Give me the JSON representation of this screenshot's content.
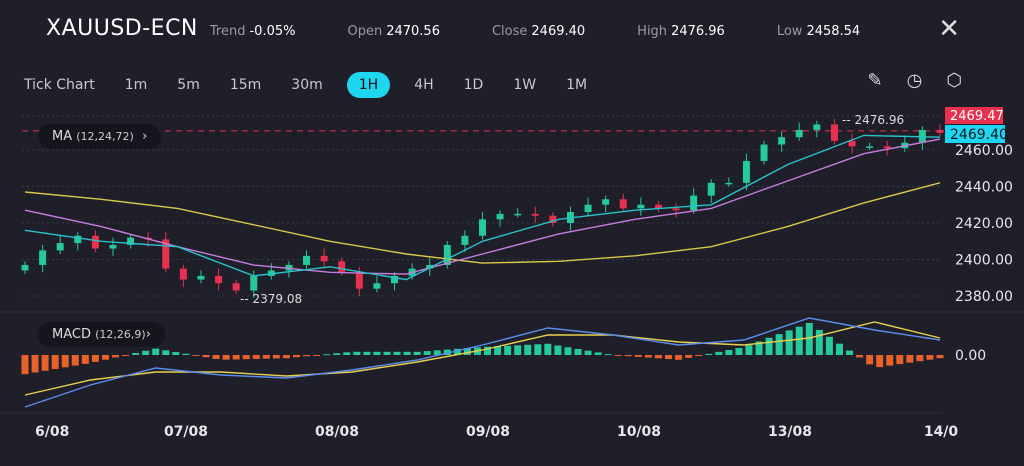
{
  "header": {
    "symbol": "XAUUSD-ECN",
    "trend_label": "Trend",
    "trend": "-0.05%",
    "open_label": "Open",
    "open": "2470.56",
    "close_label": "Close",
    "close": "2469.40",
    "high_label": "High",
    "high": "2476.96",
    "low_label": "Low",
    "low": "2458.54",
    "close_icon": "close-icon"
  },
  "toolbar": {
    "timeframes": [
      "Tick Chart",
      "1m",
      "5m",
      "15m",
      "30m",
      "1H",
      "4H",
      "1D",
      "1W",
      "1M"
    ],
    "active": "1H",
    "icons": [
      "pencil-icon",
      "timer-icon",
      "settings-icon"
    ]
  },
  "indicators": {
    "ma_label": "MA",
    "ma_params": "(12,24,72)",
    "macd_label": "MACD",
    "macd_params": "(12,26,9)"
  },
  "colors": {
    "bg": "#1f1f29",
    "up": "#26c99a",
    "down": "#e8304f",
    "ma12": "#27c3c9",
    "ma24": "#c77de0",
    "ma72": "#d8c84a",
    "macd": "#5b8def",
    "signal": "#e8d04f",
    "hist_pos": "#26c99a",
    "hist_neg": "#e8602a",
    "last": "#1fd6f0"
  },
  "chart_data": {
    "type": "candlestick",
    "y_ticks": [
      "2460.00",
      "2440.00",
      "2420.00",
      "2400.00",
      "2380.00"
    ],
    "ylim": [
      2372,
      2480
    ],
    "x_ticks": [
      "6/08",
      "07/08",
      "08/08",
      "09/08",
      "10/08",
      "13/08",
      "14/0"
    ],
    "closes": [
      2397,
      2405,
      2409,
      2413,
      2406,
      2408,
      2412,
      2411,
      2395,
      2389,
      2391,
      2387,
      2383,
      2391,
      2394,
      2397,
      2402,
      2399,
      2393,
      2384,
      2387,
      2391,
      2395,
      2397,
      2408,
      2413,
      2422,
      2425,
      2425,
      2424,
      2420,
      2426,
      2430,
      2433,
      2428,
      2430,
      2428,
      2427,
      2435,
      2442,
      2442,
      2454,
      2463,
      2467,
      2471,
      2474,
      2465,
      2462,
      2462,
      2461,
      2464,
      2471,
      2469.4
    ],
    "high_marker": "2476.96",
    "low_marker": "2379.08",
    "price_labels": {
      "bid": "2469.47",
      "last": "2469.40"
    },
    "ma": {
      "ma12": [
        2416,
        2410,
        2407,
        2391,
        2396,
        2389,
        2410,
        2422,
        2427,
        2430,
        2452,
        2468,
        2467
      ],
      "ma24": [
        2427,
        2418,
        2407,
        2397,
        2393,
        2392,
        2403,
        2414,
        2422,
        2428,
        2443,
        2458,
        2466
      ],
      "ma72": [
        2437,
        2433,
        2428,
        2419,
        2410,
        2403,
        2398,
        2399,
        2402,
        2407,
        2418,
        2431,
        2442
      ]
    },
    "macd": {
      "zero_label": "0.00",
      "macd": [
        -5.2,
        -3,
        -1.3,
        -2,
        -2.3,
        -1.5,
        -0.5,
        1,
        2.7,
        2,
        1,
        1.5,
        3.7,
        2.5,
        1.5
      ],
      "signal": [
        -4,
        -2.5,
        -1.7,
        -1.7,
        -2.1,
        -1.7,
        -0.7,
        0.5,
        2,
        2,
        1.3,
        1,
        1.7,
        3.3,
        1.7
      ]
    }
  }
}
